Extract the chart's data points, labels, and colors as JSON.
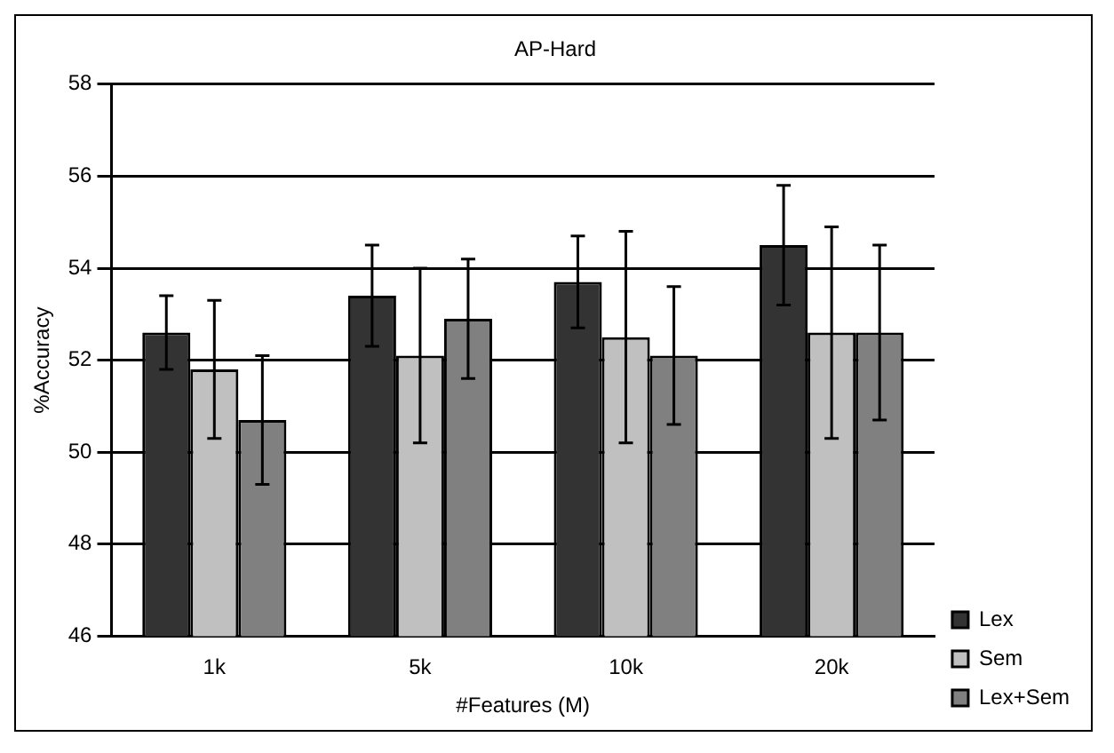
{
  "chart_data": {
    "type": "bar",
    "title": "AP-Hard",
    "xlabel": "#Features (M)",
    "ylabel": "%Accuracy",
    "categories": [
      "1k",
      "5k",
      "10k",
      "20k"
    ],
    "series": [
      {
        "name": "Lex",
        "color": "#333333",
        "values": [
          52.6,
          53.4,
          53.7,
          54.5
        ],
        "errors": [
          0.8,
          1.1,
          1.0,
          1.3
        ]
      },
      {
        "name": "Sem",
        "color": "#c0c0c0",
        "values": [
          51.8,
          52.1,
          52.5,
          52.6
        ],
        "errors": [
          1.5,
          1.9,
          2.3,
          2.3
        ]
      },
      {
        "name": "Lex+Sem",
        "color": "#808080",
        "values": [
          50.7,
          52.9,
          52.1,
          52.6
        ],
        "errors": [
          1.4,
          1.3,
          1.5,
          1.9
        ]
      }
    ],
    "ylim": [
      46,
      58
    ],
    "yticks": [
      46,
      48,
      50,
      52,
      54,
      56,
      58
    ],
    "grid": "y",
    "legend": "bottom right"
  }
}
